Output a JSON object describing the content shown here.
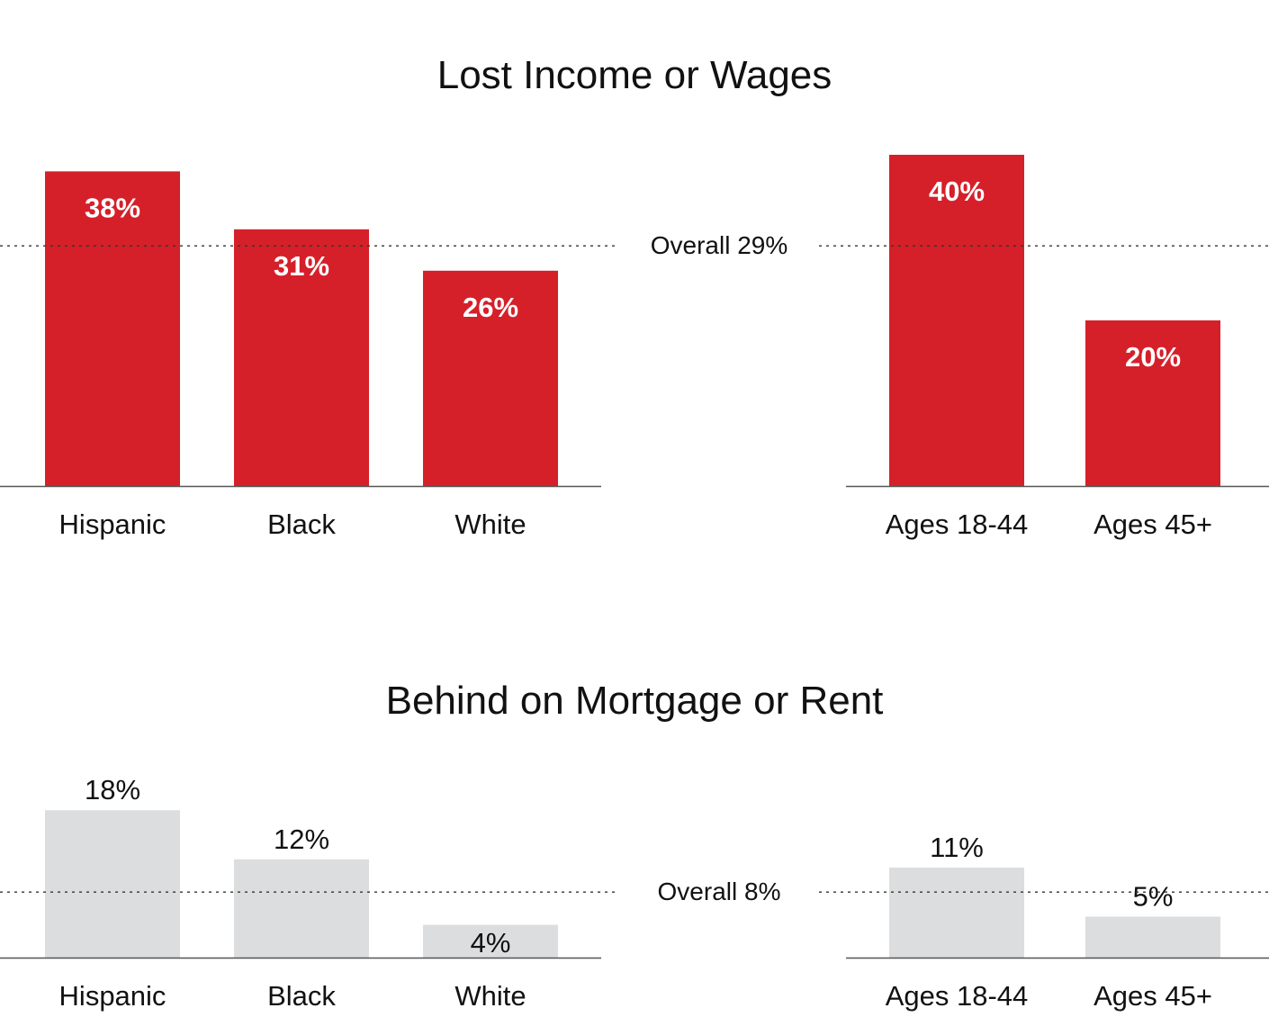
{
  "chart_data": [
    {
      "type": "bar",
      "title": "Lost Income or Wages",
      "overall_label": "Overall 29%",
      "overall_value": 29,
      "bar_color": "#d5202a",
      "label_style": "inside-white-bold",
      "groups": [
        {
          "categories": [
            "Hispanic",
            "Black",
            "White"
          ],
          "values": [
            38,
            31,
            26
          ],
          "labels": [
            "38%",
            "31%",
            "26%"
          ]
        },
        {
          "categories": [
            "Ages 18-44",
            "Ages 45+"
          ],
          "values": [
            40,
            20
          ],
          "labels": [
            "40%",
            "20%"
          ]
        }
      ]
    },
    {
      "type": "bar",
      "title": "Behind on Mortgage or Rent",
      "overall_label": "Overall 8%",
      "overall_value": 8,
      "bar_color": "#dcdddf",
      "label_style": "outside-dark",
      "groups": [
        {
          "categories": [
            "Hispanic",
            "Black",
            "White"
          ],
          "values": [
            18,
            12,
            4
          ],
          "labels": [
            "18%",
            "12%",
            "4%"
          ]
        },
        {
          "categories": [
            "Ages 18-44",
            "Ages 45+"
          ],
          "values": [
            11,
            5
          ],
          "labels": [
            "11%",
            "5%"
          ]
        }
      ]
    }
  ]
}
